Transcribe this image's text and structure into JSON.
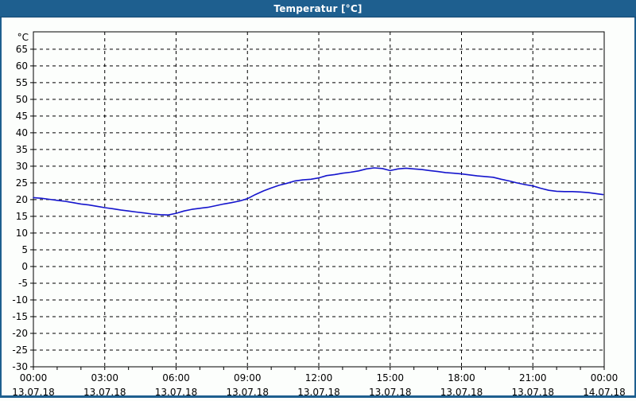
{
  "window": {
    "title": "Temperatur [°C]"
  },
  "colors": {
    "titlebar_bg": "#1e5f8f",
    "titlebar_text": "#ffffff",
    "frame": "#1e5f8f",
    "background": "#fcfefc",
    "axis": "#000000",
    "grid": "#000000",
    "tick_label": "#000000",
    "line": "#1515cd"
  },
  "chart_data": {
    "type": "line",
    "title": "Temperatur [°C]",
    "xlabel": "",
    "ylabel": "°C",
    "grid": "dashed",
    "legend_position": "none",
    "ylim": [
      -30,
      70.2
    ],
    "xlim_hours": [
      0,
      24
    ],
    "yticks": [
      65,
      60,
      55,
      50,
      45,
      40,
      35,
      30,
      25,
      20,
      15,
      10,
      5,
      0,
      -5,
      -10,
      -15,
      -20,
      -25,
      -30
    ],
    "ytick_unit": "°C",
    "xticks": [
      {
        "hour": 0,
        "time": "00:00",
        "date": "13.07.18"
      },
      {
        "hour": 3,
        "time": "03:00",
        "date": "13.07.18"
      },
      {
        "hour": 6,
        "time": "06:00",
        "date": "13.07.18"
      },
      {
        "hour": 9,
        "time": "09:00",
        "date": "13.07.18"
      },
      {
        "hour": 12,
        "time": "12:00",
        "date": "13.07.18"
      },
      {
        "hour": 15,
        "time": "15:00",
        "date": "13.07.18"
      },
      {
        "hour": 18,
        "time": "18:00",
        "date": "13.07.18"
      },
      {
        "hour": 21,
        "time": "21:00",
        "date": "13.07.18"
      },
      {
        "hour": 24,
        "time": "00:00",
        "date": "14.07.18"
      }
    ],
    "minor_xtick_step_hours": 1,
    "major_xtick_step_hours": 3,
    "series": [
      {
        "name": "Temperatur",
        "unit": "°C",
        "color": "#1515cd",
        "points": [
          [
            0.0,
            20.6
          ],
          [
            0.33,
            20.4
          ],
          [
            0.67,
            20.1
          ],
          [
            1.0,
            19.8
          ],
          [
            1.33,
            19.5
          ],
          [
            1.67,
            19.1
          ],
          [
            2.0,
            18.7
          ],
          [
            2.33,
            18.4
          ],
          [
            2.67,
            18.0
          ],
          [
            3.0,
            17.6
          ],
          [
            3.33,
            17.3
          ],
          [
            3.67,
            16.9
          ],
          [
            4.0,
            16.6
          ],
          [
            4.33,
            16.3
          ],
          [
            4.67,
            16.0
          ],
          [
            5.0,
            15.7
          ],
          [
            5.33,
            15.5
          ],
          [
            5.67,
            15.4
          ],
          [
            6.0,
            15.9
          ],
          [
            6.33,
            16.6
          ],
          [
            6.67,
            17.1
          ],
          [
            7.0,
            17.4
          ],
          [
            7.33,
            17.7
          ],
          [
            7.67,
            18.2
          ],
          [
            8.0,
            18.7
          ],
          [
            8.33,
            19.1
          ],
          [
            8.67,
            19.6
          ],
          [
            9.0,
            20.3
          ],
          [
            9.33,
            21.5
          ],
          [
            9.67,
            22.6
          ],
          [
            10.0,
            23.5
          ],
          [
            10.33,
            24.3
          ],
          [
            10.67,
            24.9
          ],
          [
            11.0,
            25.6
          ],
          [
            11.33,
            25.9
          ],
          [
            11.67,
            26.1
          ],
          [
            12.0,
            26.5
          ],
          [
            12.33,
            27.2
          ],
          [
            12.67,
            27.5
          ],
          [
            13.0,
            27.9
          ],
          [
            13.33,
            28.2
          ],
          [
            13.67,
            28.6
          ],
          [
            14.0,
            29.2
          ],
          [
            14.33,
            29.5
          ],
          [
            14.67,
            29.3
          ],
          [
            15.0,
            28.7
          ],
          [
            15.33,
            29.2
          ],
          [
            15.67,
            29.4
          ],
          [
            16.0,
            29.2
          ],
          [
            16.33,
            29.0
          ],
          [
            16.67,
            28.7
          ],
          [
            17.0,
            28.4
          ],
          [
            17.33,
            28.1
          ],
          [
            17.67,
            27.9
          ],
          [
            18.0,
            27.7
          ],
          [
            18.33,
            27.4
          ],
          [
            18.67,
            27.1
          ],
          [
            19.0,
            26.9
          ],
          [
            19.33,
            26.7
          ],
          [
            19.67,
            26.1
          ],
          [
            20.0,
            25.6
          ],
          [
            20.33,
            25.0
          ],
          [
            20.67,
            24.5
          ],
          [
            21.0,
            24.1
          ],
          [
            21.33,
            23.4
          ],
          [
            21.67,
            22.8
          ],
          [
            22.0,
            22.5
          ],
          [
            22.33,
            22.4
          ],
          [
            22.67,
            22.4
          ],
          [
            23.0,
            22.3
          ],
          [
            23.33,
            22.1
          ],
          [
            23.67,
            21.8
          ],
          [
            23.95,
            21.5
          ]
        ]
      }
    ]
  }
}
